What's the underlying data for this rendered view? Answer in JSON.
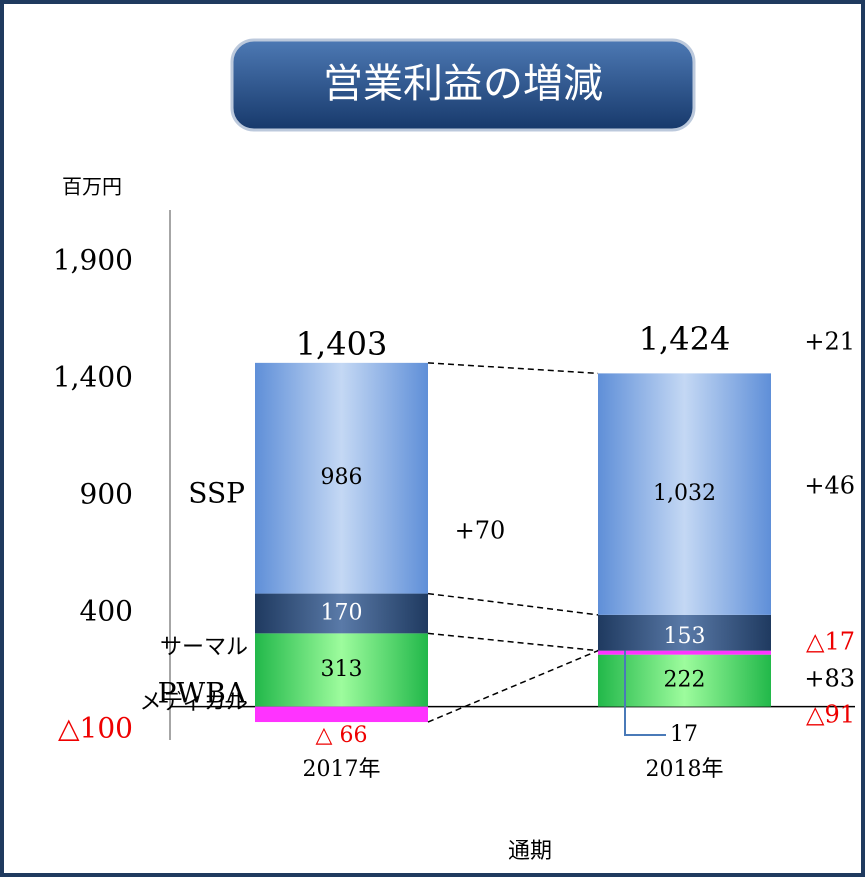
{
  "chart_data": {
    "type": "bar",
    "stacked": true,
    "title": "営業利益の増減",
    "y_unit": "百万円",
    "x_label": "通期",
    "categories": [
      "2017年",
      "2018年"
    ],
    "series": [
      {
        "name": "PWBA",
        "color": "#4fd46c",
        "values": [
          313,
          222
        ]
      },
      {
        "name": "メディカル",
        "color": "#ff33ff",
        "values": [
          -66,
          17
        ],
        "value_labels": [
          "△ 66",
          "17"
        ]
      },
      {
        "name": "サーマル",
        "color": "#2b4c78",
        "values": [
          170,
          153
        ]
      },
      {
        "name": "SSP",
        "color": "#6f9de0",
        "values": [
          986,
          1032
        ],
        "value_labels": [
          "986",
          "1,032"
        ]
      }
    ],
    "totals": {
      "values": [
        1403,
        1424
      ],
      "value_labels": [
        "1,403",
        "1,424"
      ]
    },
    "annotations": [
      {
        "text": "+21",
        "color": "#000000"
      },
      {
        "text": "+46",
        "color": "#000000"
      },
      {
        "text": "+70",
        "color": "#000000"
      },
      {
        "text": "△17",
        "color": "#ee0000"
      },
      {
        "text": "+83",
        "color": "#000000"
      },
      {
        "text": "△91",
        "color": "#ee0000"
      }
    ],
    "ylim": [
      -100,
      1900
    ],
    "yticks": [
      {
        "value": -100,
        "label": "△100"
      },
      400,
      900,
      {
        "value": 1400,
        "label": "1,400"
      },
      {
        "value": 1900,
        "label": "1,900"
      }
    ]
  }
}
